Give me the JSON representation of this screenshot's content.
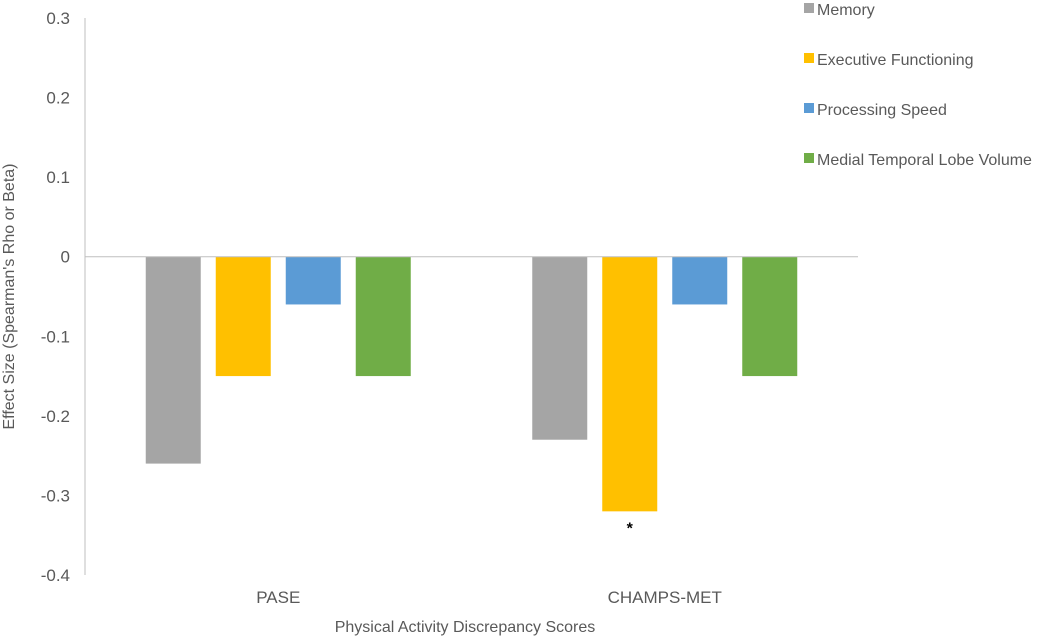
{
  "chart_data": {
    "type": "bar",
    "title": "",
    "xlabel": "Physical Activity Discrepancy Scores",
    "ylabel": "Effect Size (Spearman's Rho or Beta)",
    "ylim": [
      -0.4,
      0.3
    ],
    "yticks": [
      "0.3",
      "0.2",
      "0.1",
      "0",
      "-0.1",
      "-0.2",
      "-0.3",
      "-0.4"
    ],
    "categories": [
      "PASE",
      "CHAMPS-MET"
    ],
    "series": [
      {
        "name": "Memory",
        "color": "#a5a5a5",
        "values": [
          -0.26,
          -0.23
        ]
      },
      {
        "name": "Executive Functioning",
        "color": "#ffc000",
        "values": [
          -0.15,
          -0.32
        ]
      },
      {
        "name": "Processing Speed",
        "color": "#5b9bd5",
        "values": [
          -0.06,
          -0.06
        ]
      },
      {
        "name": "Medial Temporal Lobe Volume",
        "color": "#70ad47",
        "values": [
          -0.15,
          -0.15
        ]
      }
    ],
    "annotations": [
      {
        "text": "*",
        "category": "CHAMPS-MET",
        "series": "Executive Functioning"
      }
    ],
    "grid": false,
    "legend_position": "top-right"
  }
}
